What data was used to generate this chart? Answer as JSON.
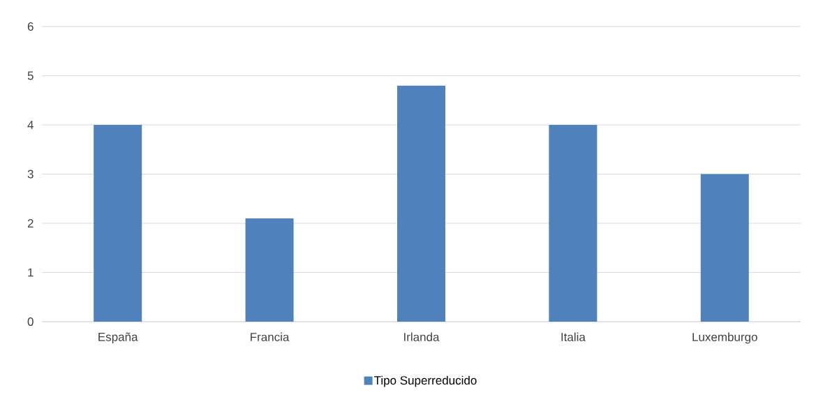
{
  "chart_data": {
    "type": "bar",
    "categories": [
      "España",
      "Francia",
      "Irlanda",
      "Italia",
      "Luxemburgo"
    ],
    "series": [
      {
        "name": "Tipo Superreducido",
        "color": "#4f81bd",
        "values": [
          4,
          2.1,
          4.8,
          4,
          3
        ]
      }
    ],
    "ylim": [
      0,
      6
    ],
    "yticks": [
      0,
      1,
      2,
      3,
      4,
      5,
      6
    ],
    "grid": "y",
    "legend": "bottom"
  }
}
